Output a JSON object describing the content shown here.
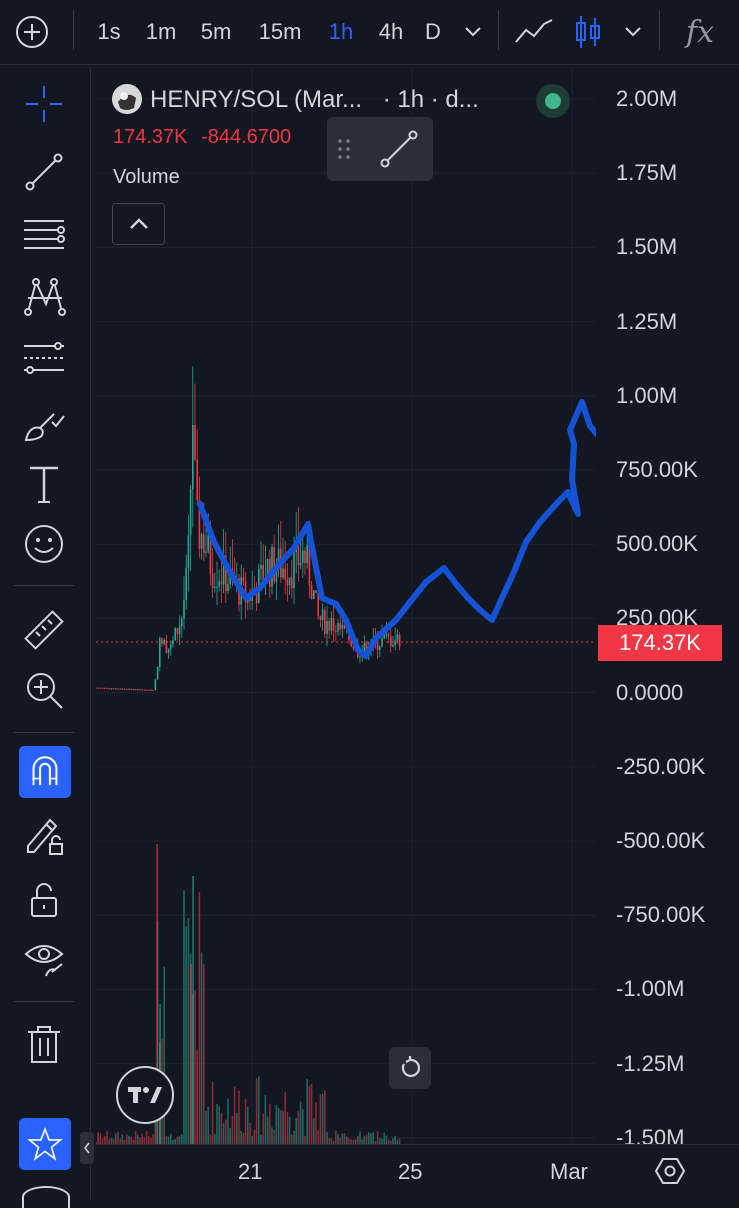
{
  "toolbar": {
    "intervals": [
      "1s",
      "1m",
      "5m",
      "15m",
      "1h",
      "4h",
      "D"
    ],
    "active_interval": "1h",
    "indicator_label": "fx"
  },
  "legend": {
    "symbol_title": "HENRY/SOL (Mar...",
    "interval_info": "· 1h · d...",
    "price": "174.37K",
    "change": "-844.6700",
    "volume_label": "Volume"
  },
  "price_axis": {
    "labels": [
      "2.00M",
      "1.75M",
      "1.50M",
      "1.25M",
      "1.00M",
      "750.00K",
      "500.00K",
      "250.00K",
      "0.0000",
      "-250.00K",
      "-500.00K",
      "-750.00K",
      "-1.00M",
      "-1.25M",
      "-1.50M"
    ],
    "last_price": "174.37K"
  },
  "time_axis": {
    "labels": [
      "21",
      "25",
      "Mar"
    ]
  },
  "colors": {
    "background": "#131722",
    "up": "#22ab94",
    "down": "#f23645",
    "accent": "#2962ff",
    "drawing": "#1652d6"
  },
  "icons": {
    "left_tools": [
      "crosshair-icon",
      "trend-line-icon",
      "horizontal-lines-icon",
      "pattern-icon",
      "forecast-icon",
      "brush-icon",
      "text-icon",
      "emoji-icon",
      "ruler-icon",
      "zoom-in-icon",
      "magnet-icon",
      "lock-drawing-icon",
      "unlock-icon",
      "eye-icon",
      "trash-icon",
      "star-icon"
    ]
  }
}
